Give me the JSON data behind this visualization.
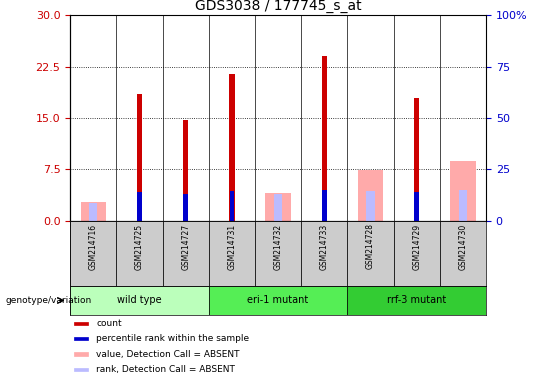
{
  "title": "GDS3038 / 177745_s_at",
  "samples": [
    "GSM214716",
    "GSM214725",
    "GSM214727",
    "GSM214731",
    "GSM214732",
    "GSM214733",
    "GSM214728",
    "GSM214729",
    "GSM214730"
  ],
  "groups": [
    {
      "label": "wild type",
      "start": 0,
      "end": 3,
      "color": "#bbffbb"
    },
    {
      "label": "eri-1 mutant",
      "start": 3,
      "end": 6,
      "color": "#55ee55"
    },
    {
      "label": "rrf-3 mutant",
      "start": 6,
      "end": 9,
      "color": "#33cc33"
    }
  ],
  "count": [
    null,
    18.5,
    14.7,
    21.5,
    null,
    24.0,
    null,
    18.0,
    null
  ],
  "percentile_rank": [
    null,
    14.2,
    13.1,
    14.5,
    null,
    15.0,
    null,
    14.2,
    null
  ],
  "value_absent": [
    9.0,
    null,
    null,
    null,
    13.5,
    null,
    24.5,
    null,
    29.0
  ],
  "rank_absent": [
    8.5,
    null,
    null,
    null,
    13.0,
    null,
    14.5,
    null,
    15.0
  ],
  "left_yaxis": {
    "min": 0,
    "max": 30,
    "ticks": [
      0,
      7.5,
      15,
      22.5,
      30
    ],
    "color": "#cc0000"
  },
  "right_yaxis": {
    "min": 0,
    "max": 100,
    "ticks": [
      0,
      25,
      50,
      75,
      100
    ],
    "color": "#0000cc"
  },
  "grid_values": [
    7.5,
    15,
    22.5
  ],
  "count_color": "#cc0000",
  "percentile_color": "#0000cc",
  "value_absent_color": "#ffaaaa",
  "rank_absent_color": "#bbbbff",
  "bg_label": "#cccccc",
  "legend_items": [
    {
      "color": "#cc0000",
      "label": "count"
    },
    {
      "color": "#0000cc",
      "label": "percentile rank within the sample"
    },
    {
      "color": "#ffaaaa",
      "label": "value, Detection Call = ABSENT"
    },
    {
      "color": "#bbbbff",
      "label": "rank, Detection Call = ABSENT"
    }
  ]
}
